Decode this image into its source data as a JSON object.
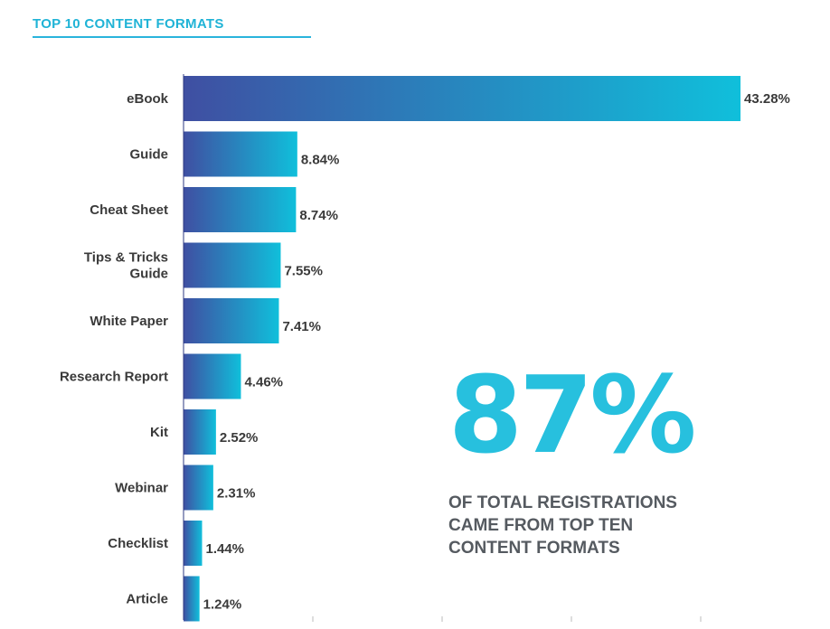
{
  "header": {
    "title": "TOP 10 CONTENT FORMATS"
  },
  "colors": {
    "bar_start": "#3f4fa2",
    "bar_end": "#10bfdb",
    "accent": "#27c0de",
    "text": "#3a3a3a"
  },
  "chart_data": {
    "type": "bar",
    "orientation": "horizontal",
    "title": "TOP 10 CONTENT FORMATS",
    "categories": [
      [
        "eBook"
      ],
      [
        "Guide"
      ],
      [
        "Cheat Sheet"
      ],
      [
        "Tips & Tricks",
        "Guide"
      ],
      [
        "White Paper"
      ],
      [
        "Research Report"
      ],
      [
        "Kit"
      ],
      [
        "Webinar"
      ],
      [
        "Checklist"
      ],
      [
        "Article"
      ]
    ],
    "values": [
      43.28,
      8.84,
      8.74,
      7.55,
      7.41,
      4.46,
      2.52,
      2.31,
      1.44,
      1.24
    ],
    "value_labels": [
      "43.28%",
      "8.84%",
      "8.74%",
      "7.55%",
      "7.41%",
      "4.46%",
      "2.52%",
      "2.31%",
      "1.44%",
      "1.24%"
    ],
    "xlim": [
      0,
      43.28
    ]
  },
  "callout": {
    "stat": "87%",
    "caption_lines": [
      "OF TOTAL REGISTRATIONS",
      "CAME FROM TOP TEN",
      "CONTENT FORMATS"
    ]
  }
}
